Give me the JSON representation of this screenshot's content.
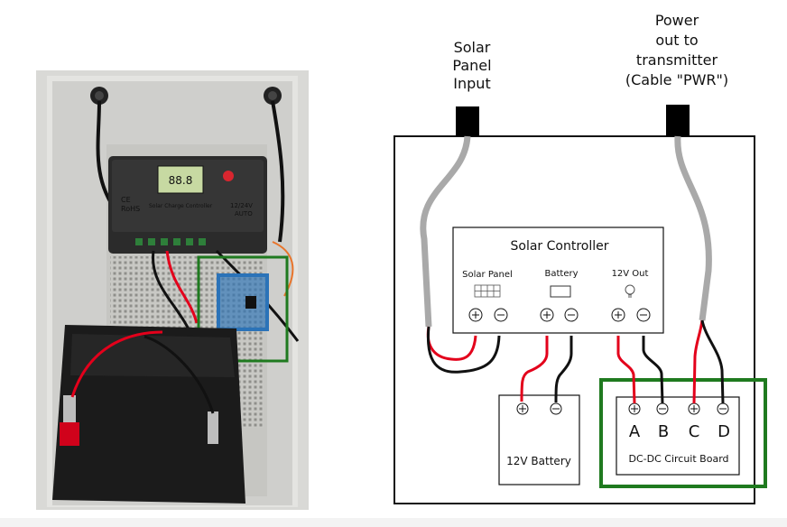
{
  "labels": {
    "solar_input": [
      "Solar",
      "Panel",
      "Input"
    ],
    "power_out": [
      "Power",
      "out to",
      "transmitter",
      "(Cable \"PWR\")"
    ]
  },
  "controller": {
    "title": "Solar Controller",
    "solar_panel": "Solar Panel",
    "battery": "Battery",
    "out": "12V Out"
  },
  "battery": {
    "label": "12V Battery"
  },
  "board": {
    "label": "DC-DC Circuit Board",
    "terminals": [
      "A",
      "B",
      "C",
      "D"
    ]
  },
  "photo": {
    "charge_controller_lines": [
      "Solar Charge Controller",
      "12/24V",
      "AUTO"
    ],
    "marks": [
      "CE",
      "RoHS"
    ],
    "lcd_digits": "88.8"
  },
  "colors": {
    "cable_gray": "#a9a9a9",
    "wire_red": "#e3001b",
    "wire_black": "#111111",
    "highlight_green": "#1f7a1f"
  }
}
